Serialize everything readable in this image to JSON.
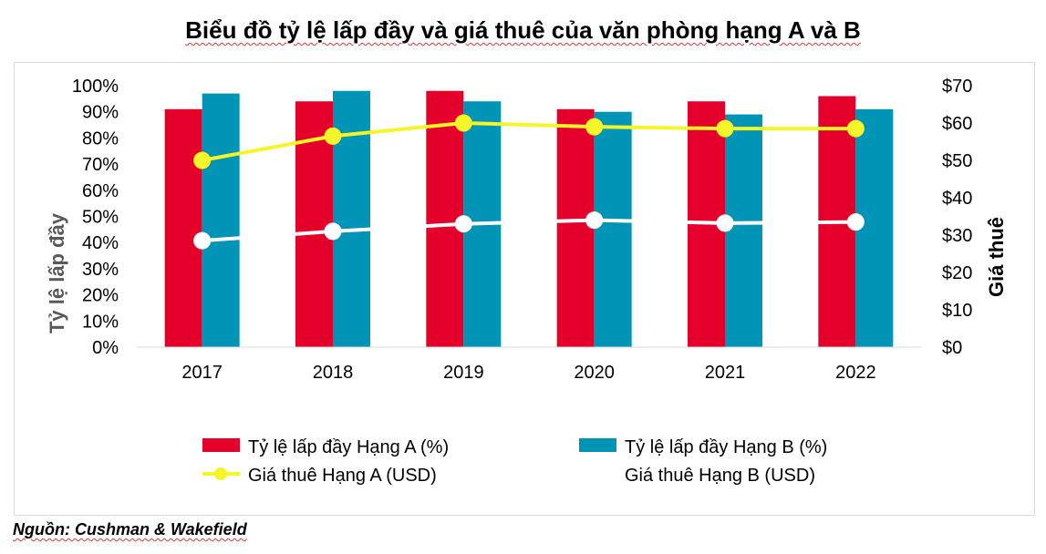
{
  "title": "Biểu đồ tỷ lệ lấp đầy và giá thuê của văn phòng hạng A và B",
  "source": "Nguồn: Cushman & Wakefield",
  "chart_data": {
    "type": "bar",
    "categories": [
      "2017",
      "2018",
      "2019",
      "2020",
      "2021",
      "2022"
    ],
    "series": [
      {
        "name": "Tỷ lệ lấp đầy Hạng A (%)",
        "kind": "bar",
        "axis": "left",
        "color": "#e4002b",
        "values": [
          91,
          94,
          98,
          91,
          94,
          96
        ]
      },
      {
        "name": "Tỷ lệ lấp đầy Hạng B (%)",
        "kind": "bar",
        "axis": "left",
        "color": "#0095b6",
        "values": [
          97,
          98,
          94,
          90,
          89,
          91
        ]
      },
      {
        "name": "Giá thuê Hạng A (USD)",
        "kind": "line",
        "axis": "right",
        "color": "#f5f52a",
        "values": [
          50,
          56.5,
          60,
          59,
          58.5,
          58.5
        ]
      },
      {
        "name": "Giá thuê Hạng B (USD)",
        "kind": "line",
        "axis": "right",
        "color": "#ffffff",
        "values": [
          28.5,
          31,
          33,
          34,
          33.2,
          33.5
        ]
      }
    ],
    "y_left": {
      "label": "Tỷ lệ lấp đầy",
      "range": [
        0,
        100
      ],
      "ticks": [
        "0%",
        "10%",
        "20%",
        "30%",
        "40%",
        "50%",
        "60%",
        "70%",
        "80%",
        "90%",
        "100%"
      ]
    },
    "y_right": {
      "label": "Giá thuê",
      "range": [
        0,
        70
      ],
      "ticks": [
        "$0",
        "$10",
        "$20",
        "$30",
        "$40",
        "$50",
        "$60",
        "$70"
      ]
    },
    "legend_position": "bottom",
    "grid": false
  }
}
